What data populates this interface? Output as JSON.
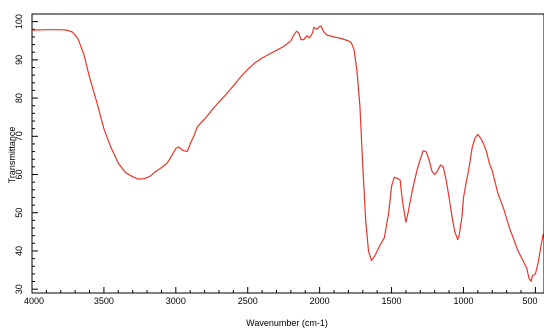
{
  "chart_data": {
    "type": "line",
    "title": "",
    "xlabel": "Wavenumber (cm-1)",
    "ylabel": "Transmittance",
    "xlim": [
      4000,
      440
    ],
    "ylim": [
      29,
      102
    ],
    "x_reversed": true,
    "x_ticks": [
      4000,
      3500,
      3000,
      2500,
      2000,
      1500,
      1000,
      500
    ],
    "y_ticks": [
      30,
      40,
      50,
      60,
      70,
      80,
      90,
      100
    ],
    "grid": false,
    "legend": "none",
    "colors": {
      "line": "#e8352b",
      "axis": "#000000"
    },
    "series": [
      {
        "points": [
          [
            4000,
            97.8
          ],
          [
            3900,
            97.9
          ],
          [
            3800,
            97.9
          ],
          [
            3760,
            97.8
          ],
          [
            3720,
            97.3
          ],
          [
            3680,
            95.5
          ],
          [
            3640,
            91.5
          ],
          [
            3600,
            85.5
          ],
          [
            3550,
            79.0
          ],
          [
            3500,
            72.0
          ],
          [
            3450,
            67.0
          ],
          [
            3400,
            63.0
          ],
          [
            3350,
            60.5
          ],
          [
            3300,
            59.4
          ],
          [
            3260,
            58.8
          ],
          [
            3220,
            58.9
          ],
          [
            3180,
            59.5
          ],
          [
            3150,
            60.5
          ],
          [
            3100,
            61.8
          ],
          [
            3060,
            63.0
          ],
          [
            3030,
            64.8
          ],
          [
            3000,
            66.8
          ],
          [
            2980,
            67.2
          ],
          [
            2960,
            66.5
          ],
          [
            2940,
            66.2
          ],
          [
            2920,
            66.0
          ],
          [
            2900,
            68.0
          ],
          [
            2870,
            70.5
          ],
          [
            2850,
            72.5
          ],
          [
            2800,
            74.5
          ],
          [
            2750,
            76.8
          ],
          [
            2700,
            79.0
          ],
          [
            2650,
            81.0
          ],
          [
            2600,
            83.2
          ],
          [
            2550,
            85.5
          ],
          [
            2500,
            87.5
          ],
          [
            2450,
            89.2
          ],
          [
            2400,
            90.5
          ],
          [
            2350,
            91.5
          ],
          [
            2300,
            92.5
          ],
          [
            2250,
            93.5
          ],
          [
            2200,
            95.0
          ],
          [
            2180,
            96.5
          ],
          [
            2160,
            97.5
          ],
          [
            2145,
            97.0
          ],
          [
            2130,
            95.3
          ],
          [
            2110,
            95.3
          ],
          [
            2090,
            96.3
          ],
          [
            2070,
            95.8
          ],
          [
            2050,
            97.0
          ],
          [
            2040,
            98.5
          ],
          [
            2020,
            98.0
          ],
          [
            2000,
            98.7
          ],
          [
            1990,
            98.8
          ],
          [
            1970,
            97.3
          ],
          [
            1950,
            96.5
          ],
          [
            1900,
            96.0
          ],
          [
            1850,
            95.6
          ],
          [
            1800,
            95.0
          ],
          [
            1780,
            94.5
          ],
          [
            1760,
            92.5
          ],
          [
            1740,
            87.0
          ],
          [
            1720,
            78.0
          ],
          [
            1700,
            62.0
          ],
          [
            1680,
            48.0
          ],
          [
            1660,
            40.0
          ],
          [
            1640,
            37.5
          ],
          [
            1620,
            38.5
          ],
          [
            1600,
            40.0
          ],
          [
            1580,
            41.5
          ],
          [
            1550,
            43.5
          ],
          [
            1520,
            50.0
          ],
          [
            1500,
            57.0
          ],
          [
            1480,
            59.3
          ],
          [
            1460,
            59.0
          ],
          [
            1440,
            58.5
          ],
          [
            1430,
            55.0
          ],
          [
            1420,
            52.0
          ],
          [
            1400,
            47.5
          ],
          [
            1385,
            50.0
          ],
          [
            1360,
            55.0
          ],
          [
            1340,
            58.5
          ],
          [
            1320,
            61.5
          ],
          [
            1300,
            64.0
          ],
          [
            1280,
            66.2
          ],
          [
            1260,
            66.0
          ],
          [
            1240,
            64.0
          ],
          [
            1220,
            61.0
          ],
          [
            1200,
            60.0
          ],
          [
            1180,
            61.0
          ],
          [
            1160,
            62.5
          ],
          [
            1140,
            62.0
          ],
          [
            1120,
            58.5
          ],
          [
            1100,
            54.0
          ],
          [
            1080,
            49.0
          ],
          [
            1060,
            45.0
          ],
          [
            1040,
            43.0
          ],
          [
            1030,
            44.0
          ],
          [
            1010,
            49.0
          ],
          [
            1000,
            54.0
          ],
          [
            980,
            58.0
          ],
          [
            960,
            62.0
          ],
          [
            940,
            67.0
          ],
          [
            920,
            69.5
          ],
          [
            900,
            70.5
          ],
          [
            880,
            69.5
          ],
          [
            860,
            68.0
          ],
          [
            840,
            66.0
          ],
          [
            820,
            63.0
          ],
          [
            800,
            61.0
          ],
          [
            780,
            58.0
          ],
          [
            760,
            55.0
          ],
          [
            740,
            53.0
          ],
          [
            720,
            51.0
          ],
          [
            700,
            48.5
          ],
          [
            680,
            46.0
          ],
          [
            660,
            44.0
          ],
          [
            640,
            42.0
          ],
          [
            620,
            40.0
          ],
          [
            600,
            38.5
          ],
          [
            580,
            37.0
          ],
          [
            560,
            35.5
          ],
          [
            545,
            33.0
          ],
          [
            530,
            32.0
          ],
          [
            520,
            33.5
          ],
          [
            500,
            34.0
          ],
          [
            480,
            37.0
          ],
          [
            460,
            41.5
          ],
          [
            445,
            44.5
          ]
        ]
      }
    ]
  }
}
